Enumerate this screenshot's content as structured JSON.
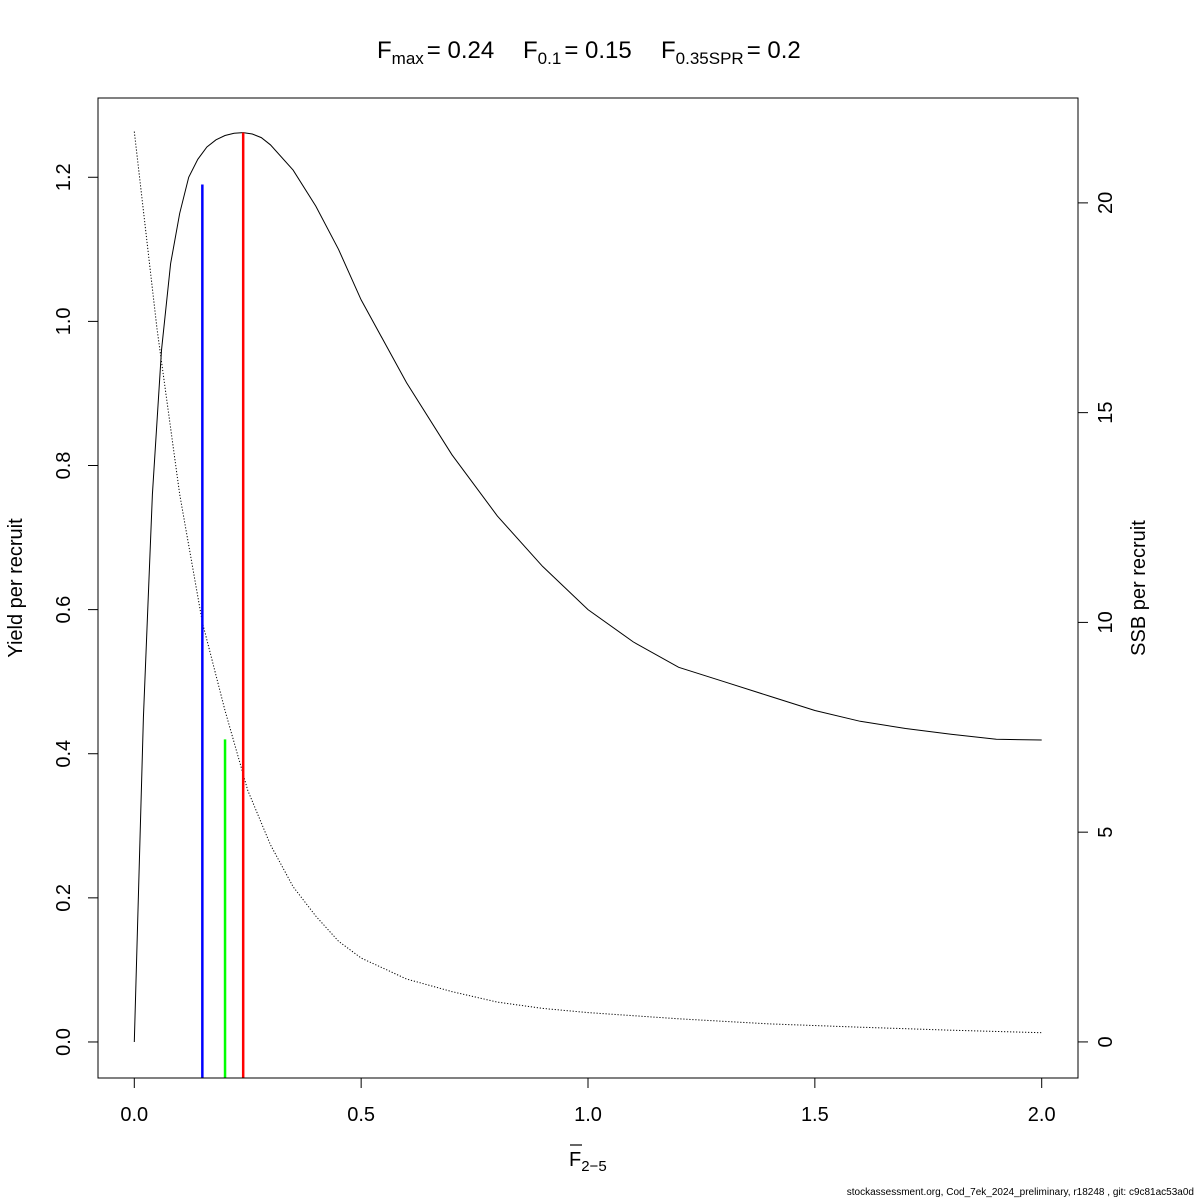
{
  "chart_data": {
    "type": "line",
    "title": {
      "fmax": {
        "main": "F",
        "sub": "max",
        "value": "= 0.24"
      },
      "f01": {
        "main": "F",
        "sub": "0.1",
        "value": "= 0.15"
      },
      "fspr": {
        "main": "F",
        "sub": "0.35SPR",
        "value": "= 0.2"
      }
    },
    "xlabel": {
      "main": "F",
      "sub": "2−5"
    },
    "ylabel_left": "Yield per recruit",
    "ylabel_right": "SSB per recruit",
    "xlim": [
      -0.08,
      2.08
    ],
    "ylim_left": [
      -0.05,
      1.31
    ],
    "ylim_right": [
      -0.86,
      22.5
    ],
    "x_ticks": [
      0,
      0.5,
      1,
      1.5,
      2
    ],
    "x_tick_labels": [
      "0.0",
      "0.5",
      "1.0",
      "1.5",
      "2.0"
    ],
    "y_left_ticks": [
      0,
      0.2,
      0.4,
      0.6,
      0.8,
      1.0,
      1.2
    ],
    "y_left_tick_labels": [
      "0.0",
      "0.2",
      "0.4",
      "0.6",
      "0.8",
      "1.0",
      "1.2"
    ],
    "y_right_ticks": [
      0,
      5,
      10,
      15,
      20
    ],
    "y_right_tick_labels": [
      "0",
      "5",
      "10",
      "15",
      "20"
    ],
    "series": [
      {
        "axis": "left",
        "style": "solid",
        "color": "#000000",
        "x": [
          0,
          0.02,
          0.04,
          0.06,
          0.08,
          0.1,
          0.12,
          0.14,
          0.16,
          0.18,
          0.2,
          0.22,
          0.24,
          0.26,
          0.28,
          0.3,
          0.35,
          0.4,
          0.45,
          0.5,
          0.6,
          0.7,
          0.8,
          0.9,
          1.0,
          1.1,
          1.2,
          1.3,
          1.4,
          1.5,
          1.6,
          1.7,
          1.8,
          1.9,
          2.0
        ],
        "values": [
          0.0,
          0.45,
          0.76,
          0.96,
          1.08,
          1.15,
          1.2,
          1.225,
          1.242,
          1.252,
          1.258,
          1.261,
          1.262,
          1.26,
          1.255,
          1.245,
          1.21,
          1.16,
          1.1,
          1.03,
          0.915,
          0.815,
          0.73,
          0.66,
          0.6,
          0.555,
          0.52,
          0.5,
          0.48,
          0.46,
          0.445,
          0.435,
          0.427,
          0.42,
          0.419
        ]
      },
      {
        "axis": "right",
        "style": "dotted",
        "color": "#000000",
        "x": [
          0,
          0.05,
          0.1,
          0.15,
          0.2,
          0.25,
          0.3,
          0.35,
          0.4,
          0.45,
          0.5,
          0.6,
          0.7,
          0.8,
          0.9,
          1.0,
          1.2,
          1.4,
          1.6,
          1.8,
          2.0
        ],
        "values": [
          21.7,
          17.0,
          13.05,
          10.0,
          7.9,
          6.0,
          4.7,
          3.7,
          3.0,
          2.4,
          2.0,
          1.5,
          1.2,
          0.95,
          0.8,
          0.7,
          0.55,
          0.43,
          0.35,
          0.28,
          0.22
        ]
      }
    ],
    "reference_lines": [
      {
        "name": "Fmax",
        "x": 0.24,
        "y_top": 1.262,
        "color": "#ff0000"
      },
      {
        "name": "F0.1",
        "x": 0.15,
        "y_top": 1.19,
        "color": "#0000ff"
      },
      {
        "name": "F0.35SPR",
        "x": 0.2,
        "y_top": 0.42,
        "color": "#00ff00"
      }
    ]
  },
  "footer": "stockassessment.org, Cod_7ek_2024_preliminary, r18248 , git: c9c81ac53a0d"
}
